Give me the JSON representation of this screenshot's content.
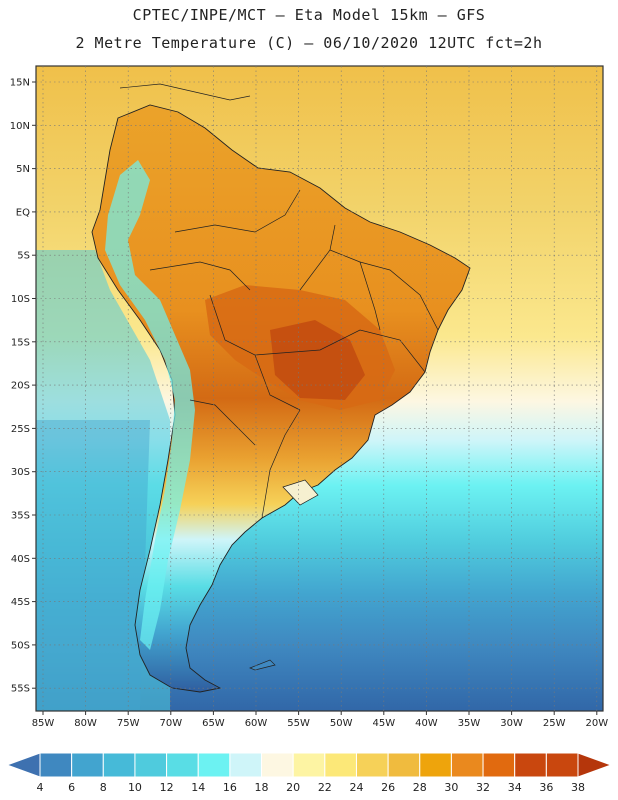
{
  "header": {
    "line1": "CPTEC/INPE/MCT –  Eta Model 15km – GFS",
    "line2": "2 Metre Temperature (C) – 06/10/2020 12UTC fct=2h"
  },
  "axes": {
    "lat_labels": [
      "15N",
      "10N",
      "5N",
      "EQ",
      "5S",
      "10S",
      "15S",
      "20S",
      "25S",
      "30S",
      "35S",
      "40S",
      "45S",
      "50S",
      "55S"
    ],
    "lon_labels": [
      "85W",
      "80W",
      "75W",
      "70W",
      "65W",
      "60W",
      "55W",
      "50W",
      "45W",
      "40W",
      "35W",
      "30W",
      "25W",
      "20W"
    ]
  },
  "colorbar": {
    "labels": [
      "4",
      "6",
      "8",
      "10",
      "12",
      "14",
      "16",
      "18",
      "20",
      "22",
      "24",
      "26",
      "28",
      "30",
      "32",
      "34",
      "36",
      "38"
    ],
    "colors": [
      "#3e71b0",
      "#3f88c0",
      "#42a4cf",
      "#46bad8",
      "#4fcbdd",
      "#59dde5",
      "#6cf2f2",
      "#cff5f9",
      "#fdf7e2",
      "#fdf4a3",
      "#fce878",
      "#f6d158",
      "#f0bb3e",
      "#eea40c",
      "#ea891e",
      "#e16a0f",
      "#c9470e",
      "#b5360b"
    ]
  },
  "map": {
    "ocean_color": "#e9c44e",
    "land_warm": "#eca429",
    "land_hot": "#d76a14",
    "land_hottest": "#c24b0f",
    "south_cool": "#4fcbdd",
    "south_cold": "#3f88c0",
    "south_coldest": "#3167a8"
  }
}
